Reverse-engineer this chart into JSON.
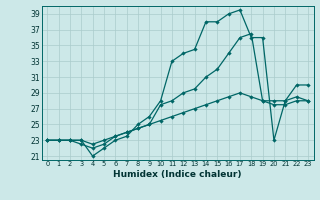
{
  "title": "",
  "xlabel": "Humidex (Indice chaleur)",
  "bg_color": "#cce8e8",
  "grid_color": "#aacccc",
  "line_color": "#006666",
  "xlim": [
    -0.5,
    23.5
  ],
  "ylim": [
    20.5,
    40.0
  ],
  "yticks": [
    21,
    23,
    25,
    27,
    29,
    31,
    33,
    35,
    37,
    39
  ],
  "xticks": [
    0,
    1,
    2,
    3,
    4,
    5,
    6,
    7,
    8,
    9,
    10,
    11,
    12,
    13,
    14,
    15,
    16,
    17,
    18,
    19,
    20,
    21,
    22,
    23
  ],
  "line1_x": [
    0,
    1,
    2,
    3,
    4,
    5,
    6,
    7,
    8,
    9,
    10,
    11,
    12,
    13,
    14,
    15,
    16,
    17,
    18,
    19,
    20,
    21,
    22,
    23
  ],
  "line1_y": [
    23,
    23,
    23,
    23,
    21,
    22,
    23,
    23.5,
    25,
    26,
    28,
    33,
    34,
    34.5,
    38,
    38,
    39,
    39.5,
    36,
    36,
    23,
    28,
    30,
    30
  ],
  "line2_x": [
    0,
    1,
    2,
    3,
    4,
    5,
    6,
    7,
    8,
    9,
    10,
    11,
    12,
    13,
    14,
    15,
    16,
    17,
    18,
    19,
    20,
    21,
    22,
    23
  ],
  "line2_y": [
    23,
    23,
    23,
    22.5,
    22,
    22.5,
    23.5,
    24,
    24.5,
    25,
    27.5,
    28,
    29,
    29.5,
    31,
    32,
    34,
    36,
    36.5,
    28,
    28,
    28,
    28.5,
    28
  ],
  "line3_x": [
    0,
    1,
    2,
    3,
    4,
    5,
    6,
    7,
    8,
    9,
    10,
    11,
    12,
    13,
    14,
    15,
    16,
    17,
    18,
    19,
    20,
    21,
    22,
    23
  ],
  "line3_y": [
    23,
    23,
    23,
    23,
    22.5,
    23,
    23.5,
    24,
    24.5,
    25,
    25.5,
    26,
    26.5,
    27,
    27.5,
    28,
    28.5,
    29,
    28.5,
    28,
    27.5,
    27.5,
    28,
    28
  ]
}
